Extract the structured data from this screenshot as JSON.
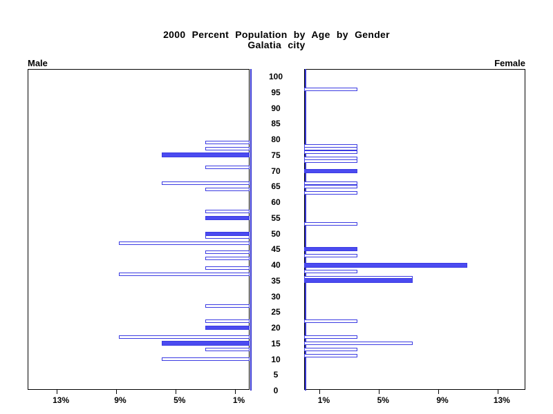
{
  "title": {
    "line1": "2000 Percent Population by Age by Gender",
    "line2": "Galatia city"
  },
  "panels": {
    "male_label": "Male",
    "female_label": "Female"
  },
  "colors": {
    "bar_fill_blue": "#4b4bf0",
    "bar_border_blue": "#3a3ae2",
    "axis_line_blue": "#3434cf",
    "frame_black": "#000000"
  },
  "chart_data": {
    "type": "bar",
    "subtype": "population-pyramid",
    "title": "2000 Percent Population by Age by Gender",
    "subtitle": "Galatia city",
    "xlabel": "",
    "ylabel": "",
    "grid": false,
    "age_axis": {
      "min": 0,
      "max": 100,
      "step": 5,
      "tick_values": [
        100,
        95,
        90,
        85,
        80,
        75,
        70,
        65,
        60,
        55,
        50,
        45,
        40,
        35,
        30,
        25,
        20,
        15,
        10,
        5,
        0
      ]
    },
    "pct_axis": {
      "max_pct": 15,
      "tick_values": [
        13,
        9,
        5,
        1
      ],
      "tick_labels": [
        "13%",
        "9%",
        "5%",
        "1%"
      ]
    },
    "legend": "none",
    "bar_note": "filled=solid blue bar, otherwise white bar with blue outline; pct = percent of population at single year of age",
    "male": {
      "label": "Male",
      "bars": [
        {
          "age": 79,
          "pct": 3.0,
          "filled": false
        },
        {
          "age": 77,
          "pct": 3.0,
          "filled": false
        },
        {
          "age": 75,
          "pct": 5.9,
          "filled": true
        },
        {
          "age": 71,
          "pct": 3.0,
          "filled": false
        },
        {
          "age": 66,
          "pct": 5.9,
          "filled": false
        },
        {
          "age": 64,
          "pct": 3.0,
          "filled": false
        },
        {
          "age": 57,
          "pct": 3.0,
          "filled": false
        },
        {
          "age": 55,
          "pct": 3.0,
          "filled": true
        },
        {
          "age": 50,
          "pct": 3.0,
          "filled": true
        },
        {
          "age": 49,
          "pct": 3.0,
          "filled": false
        },
        {
          "age": 47,
          "pct": 8.8,
          "filled": false
        },
        {
          "age": 44,
          "pct": 3.0,
          "filled": false
        },
        {
          "age": 42,
          "pct": 3.0,
          "filled": false
        },
        {
          "age": 39,
          "pct": 3.0,
          "filled": false
        },
        {
          "age": 37,
          "pct": 8.8,
          "filled": false
        },
        {
          "age": 27,
          "pct": 3.0,
          "filled": false
        },
        {
          "age": 22,
          "pct": 3.0,
          "filled": false
        },
        {
          "age": 20,
          "pct": 3.0,
          "filled": true
        },
        {
          "age": 17,
          "pct": 8.8,
          "filled": false
        },
        {
          "age": 15,
          "pct": 5.9,
          "filled": true
        },
        {
          "age": 13,
          "pct": 3.0,
          "filled": false
        },
        {
          "age": 10,
          "pct": 5.9,
          "filled": false
        }
      ]
    },
    "female": {
      "label": "Female",
      "bars": [
        {
          "age": 96,
          "pct": 3.6,
          "filled": false
        },
        {
          "age": 78,
          "pct": 3.6,
          "filled": false
        },
        {
          "age": 77,
          "pct": 3.6,
          "filled": false
        },
        {
          "age": 76,
          "pct": 3.6,
          "filled": false
        },
        {
          "age": 74,
          "pct": 3.6,
          "filled": false
        },
        {
          "age": 73,
          "pct": 3.6,
          "filled": false
        },
        {
          "age": 70,
          "pct": 3.6,
          "filled": true
        },
        {
          "age": 66,
          "pct": 3.6,
          "filled": false
        },
        {
          "age": 65,
          "pct": 3.6,
          "filled": false
        },
        {
          "age": 63,
          "pct": 3.6,
          "filled": false
        },
        {
          "age": 53,
          "pct": 3.6,
          "filled": false
        },
        {
          "age": 45,
          "pct": 3.6,
          "filled": true
        },
        {
          "age": 43,
          "pct": 3.6,
          "filled": false
        },
        {
          "age": 40,
          "pct": 11.0,
          "filled": true
        },
        {
          "age": 38,
          "pct": 3.6,
          "filled": false
        },
        {
          "age": 36,
          "pct": 7.3,
          "filled": false
        },
        {
          "age": 35,
          "pct": 7.3,
          "filled": true
        },
        {
          "age": 22,
          "pct": 3.6,
          "filled": false
        },
        {
          "age": 17,
          "pct": 3.6,
          "filled": false
        },
        {
          "age": 15,
          "pct": 7.3,
          "filled": false
        },
        {
          "age": 13,
          "pct": 3.6,
          "filled": false
        },
        {
          "age": 11,
          "pct": 3.6,
          "filled": false
        }
      ]
    }
  }
}
